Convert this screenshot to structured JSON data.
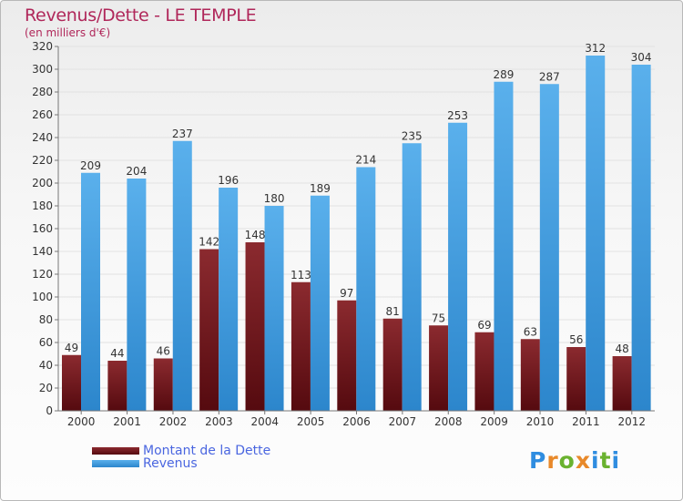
{
  "title": "Revenus/Dette - LE TEMPLE",
  "subtitle": "(en milliers d'€)",
  "brand": {
    "letters": [
      "P",
      "r",
      "o",
      "x",
      "i",
      "t",
      "i"
    ],
    "letter_colors": [
      "#2f8de0",
      "#e8892a",
      "#6ab22f",
      "#e8892a",
      "#2f8de0",
      "#6ab22f",
      "#2f8de0"
    ]
  },
  "colors": {
    "dette": "#7a1a1f",
    "revenus": "#3f9de2",
    "title": "#b0275a",
    "legend_text": "#4a66e0"
  },
  "chart_data": {
    "type": "bar",
    "categories": [
      "2000",
      "2001",
      "2002",
      "2003",
      "2004",
      "2005",
      "2006",
      "2007",
      "2008",
      "2009",
      "2010",
      "2011",
      "2012"
    ],
    "series": [
      {
        "name": "Montant de la Dette",
        "values": [
          49,
          44,
          46,
          142,
          148,
          113,
          97,
          81,
          75,
          69,
          63,
          56,
          48
        ]
      },
      {
        "name": "Revenus",
        "values": [
          209,
          204,
          237,
          196,
          180,
          189,
          214,
          235,
          253,
          289,
          287,
          312,
          304
        ]
      }
    ],
    "ylim": [
      0,
      320
    ],
    "yticks": [
      0,
      20,
      40,
      60,
      80,
      100,
      120,
      140,
      160,
      180,
      200,
      220,
      240,
      260,
      280,
      300,
      320
    ],
    "grid": true,
    "legend_position": "bottom-left"
  }
}
